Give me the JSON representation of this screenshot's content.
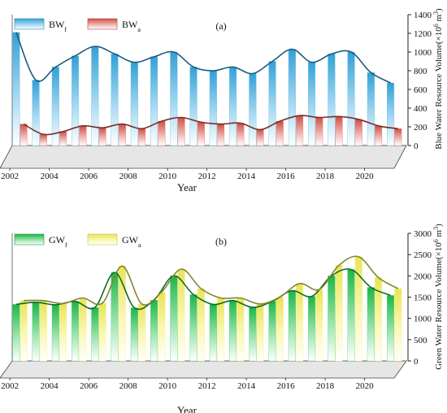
{
  "chart_data": [
    {
      "type": "bar",
      "panel_label": "(a)",
      "xlabel": "Year",
      "ylabel": "Blue Water Resource Volume(×10",
      "ylabel_sup": "6",
      "ylabel_mid": " m",
      "ylabel_sup2": "3",
      "ylabel_end": ")",
      "ylim": [
        0,
        1400
      ],
      "yticks": [
        0,
        200,
        400,
        600,
        800,
        1000,
        1200,
        1400
      ],
      "xtick_labels": [
        "2002",
        "2004",
        "2006",
        "2008",
        "2010",
        "2012",
        "2014",
        "2016",
        "2018",
        "2020"
      ],
      "categories": [
        "2002",
        "2003",
        "2004",
        "2005",
        "2006",
        "2007",
        "2008",
        "2009",
        "2010",
        "2011",
        "2012",
        "2013",
        "2014",
        "2015",
        "2016",
        "2017",
        "2018",
        "2019",
        "2020",
        "2021"
      ],
      "legend_position": "top-left",
      "series": [
        {
          "name": "BW",
          "sub": "f",
          "color": "#35a8e0",
          "values": [
            1210,
            700,
            840,
            960,
            1060,
            980,
            890,
            950,
            1000,
            840,
            800,
            840,
            770,
            900,
            1030,
            890,
            980,
            1000,
            780,
            670
          ]
        },
        {
          "name": "BW",
          "sub": "a",
          "color": "#d9534a",
          "values": [
            230,
            120,
            150,
            210,
            190,
            230,
            180,
            260,
            300,
            250,
            230,
            240,
            170,
            260,
            320,
            300,
            310,
            280,
            210,
            180
          ]
        }
      ]
    },
    {
      "type": "bar",
      "panel_label": "(b)",
      "xlabel": "Year",
      "ylabel": "Green Water Resource Volume(×10",
      "ylabel_sup": "6",
      "ylabel_mid": " m",
      "ylabel_sup2": "3",
      "ylabel_end": ")",
      "ylim": [
        0,
        3000
      ],
      "yticks": [
        0,
        500,
        1000,
        1500,
        2000,
        2500,
        3000
      ],
      "xtick_labels": [
        "2002",
        "2004",
        "2006",
        "2008",
        "2010",
        "2012",
        "2014",
        "2016",
        "2018",
        "2020"
      ],
      "categories": [
        "2002",
        "2003",
        "2004",
        "2005",
        "2006",
        "2007",
        "2008",
        "2009",
        "2010",
        "2011",
        "2012",
        "2013",
        "2014",
        "2015",
        "2016",
        "2017",
        "2018",
        "2019",
        "2020",
        "2021"
      ],
      "legend_position": "top-left",
      "series": [
        {
          "name": "GW",
          "sub": "f",
          "color": "#1fc04a",
          "values": [
            1330,
            1380,
            1320,
            1400,
            1260,
            2080,
            1250,
            1430,
            2000,
            1560,
            1330,
            1420,
            1260,
            1400,
            1650,
            1520,
            2000,
            2150,
            1730,
            1540
          ]
        },
        {
          "name": "GW",
          "sub": "a",
          "color": "#f4f05a",
          "values": [
            1420,
            1420,
            1350,
            1480,
            1360,
            2230,
            1340,
            1620,
            2160,
            1700,
            1480,
            1480,
            1340,
            1500,
            1820,
            1680,
            2250,
            2450,
            1960,
            1700
          ]
        }
      ]
    }
  ]
}
